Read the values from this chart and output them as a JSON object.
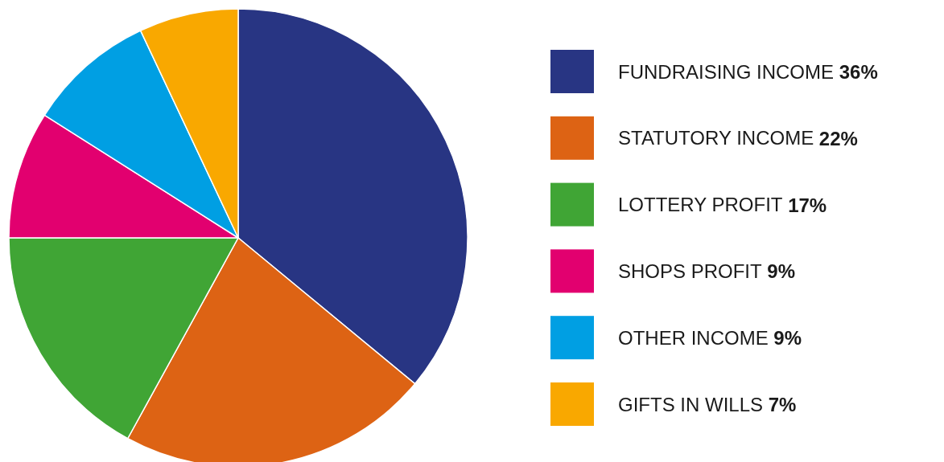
{
  "chart_data": {
    "type": "pie",
    "categories": [
      "FUNDRAISING INCOME",
      "STATUTORY INCOME",
      "LOTTERY PROFIT",
      "SHOPS PROFIT",
      "OTHER INCOME",
      "GIFTS IN WILLS"
    ],
    "values": [
      36,
      22,
      17,
      9,
      9,
      7
    ],
    "value_labels": [
      "36%",
      "22%",
      "17%",
      "9%",
      "9%",
      "7%"
    ],
    "colors": [
      "#283583",
      "#dd6314",
      "#40a535",
      "#e2006f",
      "#009fe3",
      "#f9a800"
    ],
    "legend": "right"
  }
}
